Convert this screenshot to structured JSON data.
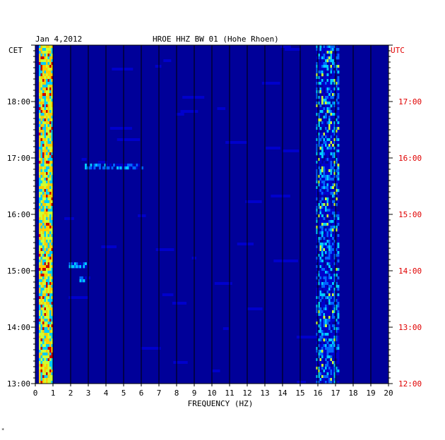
{
  "chart_data": {
    "type": "heatmap",
    "title": {
      "date": "Jan 4,2012",
      "station": "HROE HHZ BW 01 (Hohe Rhoen)"
    },
    "xlabel": "FREQUENCY (HZ)",
    "xlim": [
      0,
      20
    ],
    "x_ticks": [
      "0",
      "1",
      "2",
      "3",
      "4",
      "5",
      "6",
      "7",
      "8",
      "9",
      "10",
      "11",
      "12",
      "13",
      "14",
      "15",
      "16",
      "17",
      "18",
      "19",
      "20"
    ],
    "left_axis": {
      "label": "CET",
      "ticks": [
        "13:00",
        "14:00",
        "15:00",
        "16:00",
        "17:00",
        "18:00"
      ]
    },
    "right_axis": {
      "label": "UTC",
      "ticks": [
        "12:00",
        "13:00",
        "14:00",
        "15:00",
        "16:00",
        "17:00"
      ]
    },
    "time_range_cet": [
      "13:00",
      "19:00"
    ],
    "colors": {
      "background": "#000099",
      "low": "#0000cc",
      "mid_low": "#0066ff",
      "mid": "#00ccff",
      "mid_high": "#ccff33",
      "high": "#ffcc00",
      "peak": "#cc0000",
      "utc_label": "#e00000"
    },
    "features": [
      {
        "band_hz": [
          0.2,
          0.9
        ],
        "time": "13:00-19:00",
        "intensity": "high"
      },
      {
        "band_hz": [
          15.9,
          17.2
        ],
        "time": "13:00-19:00",
        "intensity": "medium"
      },
      {
        "band_hz": [
          1.9,
          2.9
        ],
        "time": "15:05",
        "intensity": "medium"
      },
      {
        "band_hz": [
          2.5,
          3.1
        ],
        "time": "14:50",
        "intensity": "low"
      },
      {
        "band_hz": [
          2.8,
          6.0
        ],
        "time": "16:50",
        "intensity": "low"
      }
    ],
    "grid": true
  },
  "footer_mark": "*"
}
